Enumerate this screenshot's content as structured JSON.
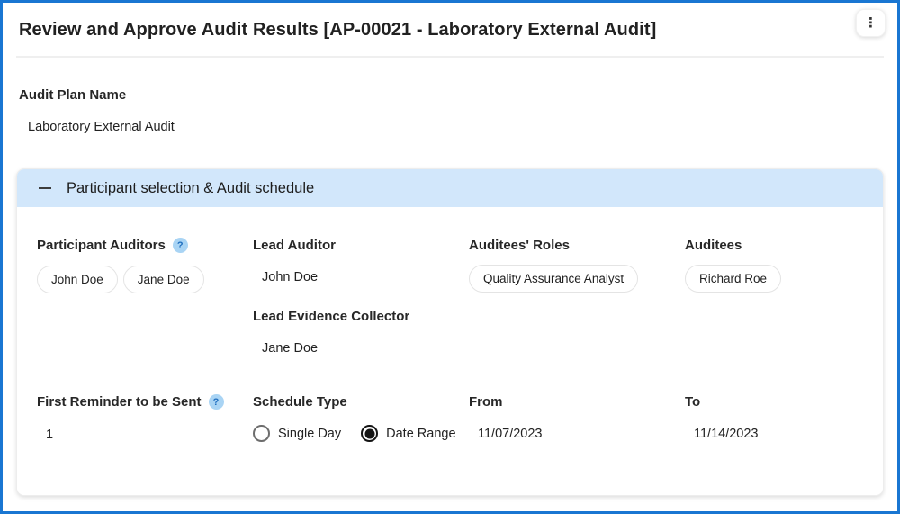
{
  "page": {
    "title": "Review and Approve Audit Results [AP-00021 - Laboratory External Audit]",
    "kebab_icon": "⋮"
  },
  "audit_plan": {
    "label": "Audit Plan Name",
    "value": "Laboratory External Audit"
  },
  "section": {
    "title": "Participant selection & Audit schedule",
    "collapsed": false,
    "fields": {
      "participant_auditors": {
        "label": "Participant Auditors",
        "help_icon": "?",
        "chips": [
          "John Doe",
          "Jane Doe"
        ]
      },
      "lead_auditor": {
        "label": "Lead Auditor",
        "value": "John Doe"
      },
      "lead_evidence_collector": {
        "label": "Lead Evidence Collector",
        "value": "Jane Doe"
      },
      "auditees_roles": {
        "label": "Auditees' Roles",
        "chips": [
          "Quality Assurance Analyst"
        ]
      },
      "auditees": {
        "label": "Auditees",
        "chips": [
          "Richard Roe"
        ]
      },
      "first_reminder": {
        "label": "First Reminder to be Sent",
        "help_icon": "?",
        "value": "1"
      },
      "schedule_type": {
        "label": "Schedule Type",
        "options": [
          {
            "label": "Single Day",
            "selected": false
          },
          {
            "label": "Date Range",
            "selected": true
          }
        ]
      },
      "from": {
        "label": "From",
        "value": "11/07/2023"
      },
      "to": {
        "label": "To",
        "value": "11/14/2023"
      }
    }
  },
  "colors": {
    "page_border": "#1976d2",
    "section_header_bg": "#d2e7fb",
    "help_icon_bg": "#a9d4f4",
    "help_icon_fg": "#2170c0",
    "text": "#212121"
  }
}
